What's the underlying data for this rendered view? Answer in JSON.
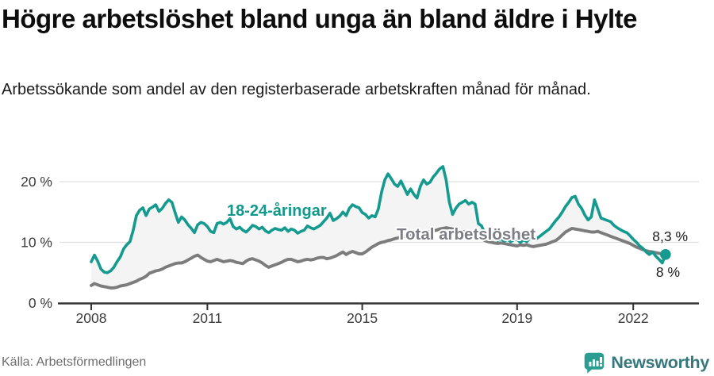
{
  "header": {
    "title": "Högre arbetslöshet bland unga än bland äldre i Hylte",
    "subtitle": "Arbetssökande som andel av den registerbaserade arbetskraften månad för månad."
  },
  "footer": {
    "source": "Källa: Arbetsförmedlingen",
    "brand_name": "Newsworthy",
    "brand_icon": "newsworthy-bubble-chart-icon"
  },
  "colors": {
    "youth_line": "#149a8e",
    "youth_label": "#13988c",
    "total_line": "#7c7c7c",
    "total_label": "#7d7d85",
    "band_fill": "#f4f4f4",
    "gridline": "#dfdfdf",
    "axis": "#333333",
    "tick_label": "#3b3b3b",
    "end_label": "#1a1a1a",
    "brand_teal": "#2a9d92",
    "brand_text": "#36787c"
  },
  "chart_data": {
    "type": "line",
    "title": "Högre arbetslöshet bland unga än bland äldre i Hylte",
    "subtitle": "Arbetssökande som andel av den registerbaserade arbetskraften månad för månad.",
    "x_unit": "month",
    "x_start": "2008-01",
    "x_end": "2022-11",
    "x_ticks": [
      "2008",
      "2011",
      "2015",
      "2019",
      "2022"
    ],
    "y_ticks": [
      {
        "value": 0,
        "label": "0 %"
      },
      {
        "value": 10,
        "label": "10 %"
      },
      {
        "value": 20,
        "label": "20 %"
      }
    ],
    "ylim": [
      0,
      23
    ],
    "grid": "horizontal",
    "legend_position": "inline-labels",
    "band_between_series": true,
    "series": [
      {
        "name": "18-24-åringar",
        "color": "#149a8e",
        "label_color": "#13988c",
        "end_label": "8 %",
        "end_value": 8.0,
        "end_dot": true,
        "values": [
          6.8,
          7.9,
          6.9,
          5.6,
          5.1,
          5.0,
          5.3,
          5.9,
          6.8,
          7.6,
          8.9,
          9.6,
          10.1,
          12.0,
          14.4,
          15.3,
          15.7,
          14.4,
          15.5,
          15.8,
          16.2,
          15.1,
          15.6,
          16.4,
          17.0,
          16.6,
          14.9,
          13.3,
          14.2,
          13.7,
          12.9,
          12.3,
          11.6,
          12.9,
          13.3,
          13.1,
          12.6,
          11.8,
          11.6,
          13.1,
          13.3,
          13.0,
          13.3,
          13.9,
          12.6,
          12.2,
          12.5,
          12.0,
          11.7,
          12.2,
          12.8,
          12.6,
          12.2,
          12.5,
          11.9,
          11.6,
          12.0,
          12.3,
          12.1,
          12.0,
          12.4,
          11.8,
          12.2,
          12.0,
          11.5,
          11.8,
          12.0,
          12.7,
          12.4,
          12.2,
          12.5,
          12.8,
          13.4,
          14.0,
          14.8,
          13.6,
          13.9,
          14.3,
          15.0,
          14.4,
          15.6,
          16.2,
          15.9,
          15.7,
          14.9,
          14.6,
          14.0,
          14.4,
          14.2,
          15.5,
          18.3,
          20.3,
          21.3,
          20.5,
          19.6,
          19.2,
          20.1,
          19.0,
          17.9,
          18.8,
          17.9,
          17.3,
          19.2,
          20.3,
          19.6,
          19.9,
          20.8,
          21.4,
          22.1,
          22.5,
          20.3,
          16.6,
          14.6,
          15.6,
          16.3,
          16.6,
          16.9,
          16.3,
          16.6,
          16.3,
          13.1,
          12.7,
          11.5,
          10.8,
          10.5,
          10.9,
          10.3,
          10.6,
          10.2,
          10.5,
          10.1,
          10.4,
          10.5,
          10.0,
          10.4,
          10.1,
          10.7,
          11.0,
          10.6,
          11.0,
          11.4,
          11.8,
          12.2,
          12.9,
          13.6,
          14.2,
          15.0,
          15.9,
          16.6,
          17.4,
          17.6,
          16.3,
          15.6,
          14.5,
          13.7,
          14.2,
          17.0,
          15.5,
          14.0,
          13.8,
          13.6,
          13.4,
          12.8,
          12.4,
          12.1,
          11.8,
          11.6,
          11.1,
          10.5,
          10.0,
          9.4,
          9.0,
          8.4,
          8.0,
          8.4,
          7.7,
          7.2,
          6.6,
          8.0
        ]
      },
      {
        "name": "Total arbetslöshet",
        "color": "#7c7c7c",
        "label_color": "#7d7d85",
        "end_label": "8,3 %",
        "end_value": 8.3,
        "end_dot": false,
        "values": [
          2.9,
          3.2,
          3.0,
          2.8,
          2.7,
          2.6,
          2.5,
          2.5,
          2.6,
          2.8,
          2.9,
          3.0,
          3.2,
          3.4,
          3.6,
          3.9,
          4.1,
          4.4,
          4.9,
          5.1,
          5.3,
          5.4,
          5.6,
          5.9,
          6.1,
          6.3,
          6.5,
          6.6,
          6.6,
          6.8,
          7.1,
          7.4,
          7.7,
          7.9,
          7.5,
          7.2,
          6.9,
          6.8,
          7.0,
          7.2,
          7.0,
          6.8,
          6.9,
          7.0,
          6.9,
          6.7,
          6.6,
          6.5,
          6.9,
          7.2,
          7.3,
          7.1,
          6.9,
          6.6,
          6.2,
          5.9,
          6.1,
          6.3,
          6.5,
          6.7,
          7.0,
          7.2,
          7.2,
          7.0,
          6.8,
          6.9,
          7.1,
          7.2,
          7.1,
          7.2,
          7.4,
          7.5,
          7.5,
          7.3,
          7.4,
          7.6,
          7.8,
          8.1,
          8.4,
          8.0,
          8.3,
          8.5,
          8.3,
          8.1,
          8.1,
          8.4,
          8.8,
          9.2,
          9.5,
          9.8,
          10.0,
          10.1,
          10.3,
          10.4,
          10.6,
          10.7,
          10.9,
          11.0,
          11.2,
          11.3,
          11.4,
          11.5,
          11.6,
          11.6,
          11.7,
          11.8,
          11.9,
          12.0,
          12.2,
          12.3,
          12.4,
          12.3,
          12.2,
          12.1,
          11.9,
          11.8,
          11.7,
          11.5,
          11.3,
          11.1,
          10.9,
          10.6,
          10.3,
          10.1,
          10.0,
          9.9,
          9.8,
          9.9,
          9.8,
          9.7,
          9.6,
          9.5,
          9.4,
          9.6,
          9.5,
          9.6,
          9.4,
          9.3,
          9.4,
          9.5,
          9.6,
          9.7,
          9.9,
          10.1,
          10.3,
          10.7,
          11.2,
          11.7,
          12.0,
          12.3,
          12.2,
          12.1,
          12.0,
          11.9,
          11.8,
          11.7,
          11.7,
          11.8,
          11.6,
          11.4,
          11.2,
          11.0,
          10.8,
          10.6,
          10.4,
          10.2,
          10.0,
          9.8,
          9.5,
          9.2,
          9.0,
          8.8,
          8.6,
          8.5,
          8.4,
          8.3,
          8.2,
          8.1,
          8.3
        ]
      }
    ]
  }
}
